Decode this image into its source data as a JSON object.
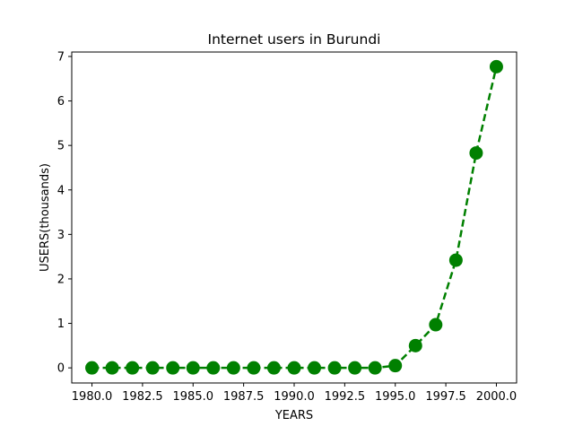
{
  "chart_data": {
    "type": "line",
    "title": "Internet users in Burundi",
    "xlabel": "YEARS",
    "ylabel": "USERS(thousands)",
    "xlim": [
      1979,
      2001
    ],
    "ylim": [
      -0.34,
      7.1
    ],
    "xticks": [
      1980.0,
      1982.5,
      1985.0,
      1987.5,
      1990.0,
      1992.5,
      1995.0,
      1997.5,
      2000.0
    ],
    "xtick_labels": [
      "1980.0",
      "1982.5",
      "1985.0",
      "1987.5",
      "1990.0",
      "1992.5",
      "1995.0",
      "1997.5",
      "2000.0"
    ],
    "yticks": [
      0,
      1,
      2,
      3,
      4,
      5,
      6,
      7
    ],
    "ytick_labels": [
      "0",
      "1",
      "2",
      "3",
      "4",
      "5",
      "6",
      "7"
    ],
    "grid": false,
    "series": [
      {
        "color": "#008000",
        "line_style": "dashed",
        "marker": "circle",
        "x": [
          1980,
          1981,
          1982,
          1983,
          1984,
          1985,
          1986,
          1987,
          1988,
          1989,
          1990,
          1991,
          1992,
          1993,
          1994,
          1995,
          1996,
          1997,
          1998,
          1999,
          2000
        ],
        "values": [
          0,
          0,
          0,
          0,
          0,
          0,
          0,
          0,
          0,
          0,
          0,
          0,
          0,
          0,
          0,
          0.05,
          0.5,
          0.97,
          2.42,
          4.83,
          6.77
        ]
      }
    ]
  }
}
